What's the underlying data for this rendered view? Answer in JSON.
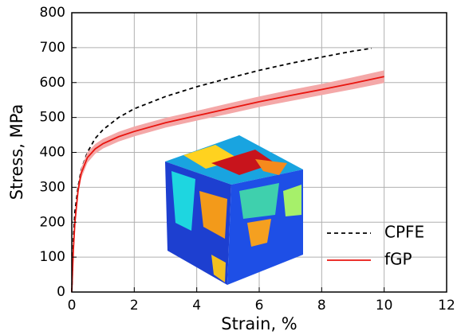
{
  "chart_data": {
    "type": "line",
    "xlabel": "Strain, %",
    "ylabel": "Stress, MPa",
    "xlim": [
      0,
      12
    ],
    "ylim": [
      0,
      800
    ],
    "xticks": [
      0,
      2,
      4,
      6,
      8,
      10,
      12
    ],
    "yticks": [
      0,
      100,
      200,
      300,
      400,
      500,
      600,
      700,
      800
    ],
    "grid": true,
    "legend": "lower right",
    "series": [
      {
        "name": "CPFE",
        "color": "#000000",
        "dash": true,
        "x": [
          0,
          0.05,
          0.1,
          0.2,
          0.3,
          0.5,
          0.75,
          1,
          1.5,
          2,
          3,
          4,
          5,
          6,
          7,
          8,
          9,
          9.6
        ],
        "values": [
          0,
          150,
          230,
          300,
          350,
          400,
          440,
          465,
          500,
          525,
          560,
          588,
          612,
          635,
          655,
          673,
          690,
          698
        ]
      },
      {
        "name": "fGP",
        "color": "#e8150f",
        "dash": false,
        "x": [
          0,
          0.05,
          0.1,
          0.2,
          0.3,
          0.5,
          0.75,
          1,
          1.5,
          2,
          3,
          4,
          5,
          6,
          7,
          8,
          9,
          10
        ],
        "values": [
          0,
          120,
          200,
          290,
          340,
          385,
          410,
          425,
          445,
          460,
          485,
          505,
          525,
          545,
          563,
          580,
          598,
          617
        ],
        "lower": [
          0,
          110,
          188,
          276,
          325,
          370,
          396,
          411,
          431,
          446,
          471,
          491,
          510,
          530,
          547,
          564,
          581,
          599
        ],
        "upper": [
          0,
          130,
          212,
          304,
          355,
          400,
          424,
          439,
          459,
          474,
          499,
          519,
          540,
          560,
          579,
          596,
          615,
          635
        ],
        "band_color": "#f4a8a8"
      }
    ]
  }
}
